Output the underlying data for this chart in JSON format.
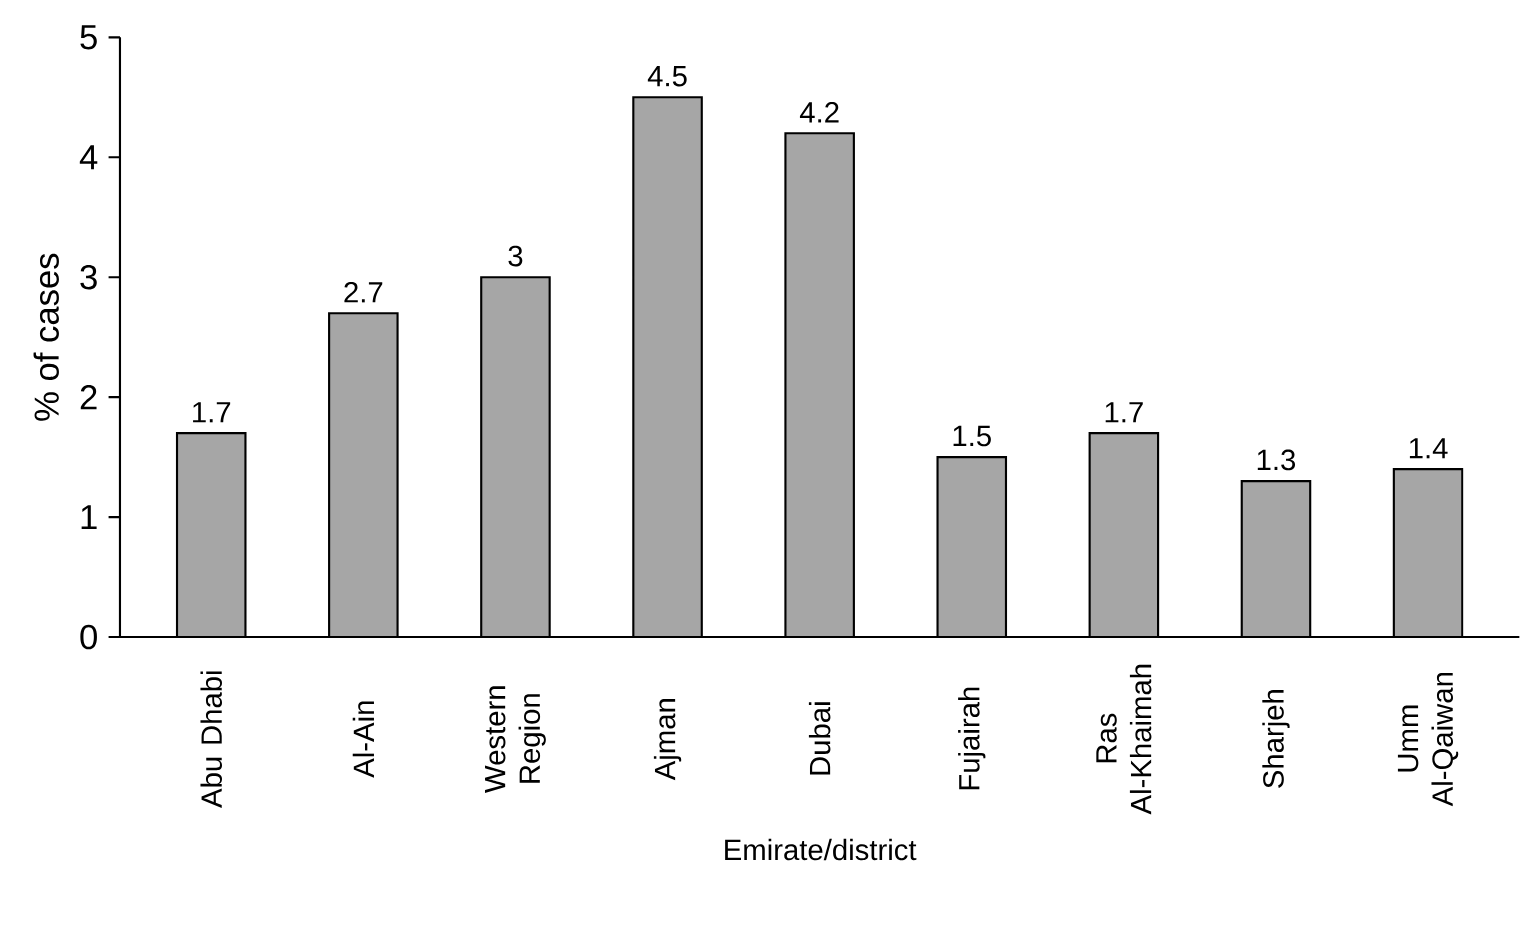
{
  "chart_data": {
    "type": "bar",
    "xlabel": "Emirate/district",
    "ylabel": "% of cases",
    "categories": [
      "Abu Dhabi",
      "Al-Ain",
      "Western Region",
      "Ajman",
      "Dubai",
      "Fujairah",
      "Ras Al-Khaimah",
      "Sharjeh",
      "Umm Al-Qaiwan"
    ],
    "values": [
      1.7,
      2.7,
      3,
      4.5,
      4.2,
      1.5,
      1.7,
      1.3,
      1.4
    ],
    "color": "#a6a6a6",
    "ylim": [
      0,
      5
    ],
    "yticks": [
      0,
      1,
      2,
      3,
      4,
      5
    ],
    "data_labels": true
  }
}
